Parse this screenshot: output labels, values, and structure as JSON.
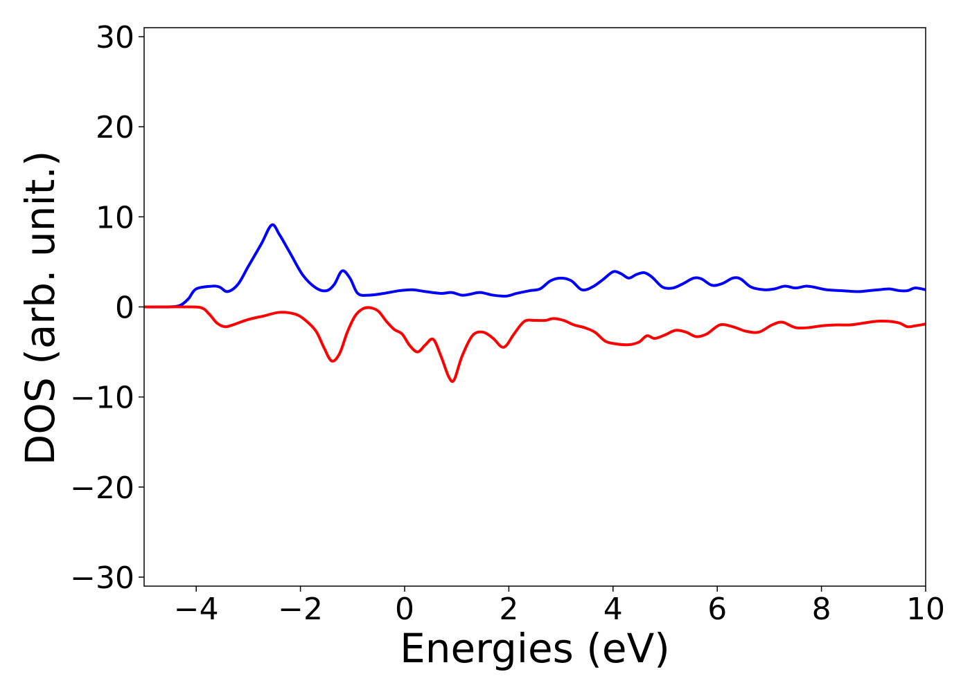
{
  "chart_data": {
    "type": "line",
    "title": "",
    "xlabel": "Energies (eV)",
    "ylabel": "DOS (arb. unit.)",
    "xlim": [
      -5,
      10
    ],
    "ylim": [
      -31,
      31
    ],
    "grid": false,
    "xticks": [
      -4,
      -2,
      0,
      2,
      4,
      6,
      8,
      10
    ],
    "xtick_labels": [
      "−4",
      "−2",
      "0",
      "2",
      "4",
      "6",
      "8",
      "10"
    ],
    "yticks": [
      30,
      20,
      10,
      0,
      -10,
      -20,
      -30
    ],
    "ytick_labels": [
      "30",
      "20",
      "10",
      "0",
      "−10",
      "−20",
      "−30"
    ],
    "series": [
      {
        "color": "#0000ff",
        "x": [
          -5,
          -4.5,
          -4.3,
          -4.15,
          -4.0,
          -3.7,
          -3.55,
          -3.4,
          -3.2,
          -3.0,
          -2.75,
          -2.55,
          -2.4,
          -2.2,
          -1.95,
          -1.7,
          -1.5,
          -1.35,
          -1.2,
          -1.05,
          -0.9,
          -0.7,
          -0.4,
          -0.1,
          0.15,
          0.4,
          0.7,
          0.9,
          1.1,
          1.25,
          1.45,
          1.7,
          1.95,
          2.15,
          2.4,
          2.6,
          2.8,
          3.0,
          3.2,
          3.4,
          3.6,
          3.8,
          4.0,
          4.15,
          4.3,
          4.45,
          4.6,
          4.75,
          4.95,
          5.15,
          5.35,
          5.55,
          5.7,
          5.9,
          6.1,
          6.3,
          6.45,
          6.65,
          6.9,
          7.1,
          7.3,
          7.5,
          7.7,
          7.85,
          8.1,
          8.4,
          8.7,
          8.9,
          9.1,
          9.3,
          9.5,
          9.65,
          9.8,
          10.0
        ],
        "y": [
          0,
          0,
          0.2,
          0.9,
          2.0,
          2.3,
          2.2,
          1.7,
          2.5,
          4.5,
          7.0,
          9.1,
          8.0,
          6.0,
          3.5,
          2.1,
          1.8,
          2.5,
          4.0,
          3.2,
          1.5,
          1.3,
          1.5,
          1.8,
          1.9,
          1.7,
          1.5,
          1.6,
          1.3,
          1.4,
          1.6,
          1.3,
          1.2,
          1.5,
          1.8,
          2.0,
          2.9,
          3.2,
          2.9,
          1.9,
          2.2,
          3.0,
          3.9,
          3.7,
          3.2,
          3.6,
          3.8,
          3.3,
          2.2,
          2.1,
          2.6,
          3.2,
          3.1,
          2.4,
          2.6,
          3.2,
          3.1,
          2.2,
          1.9,
          2.0,
          2.3,
          2.1,
          2.3,
          2.2,
          1.9,
          1.8,
          1.7,
          1.8,
          1.9,
          2.0,
          1.8,
          1.8,
          2.1,
          1.9
        ]
      },
      {
        "color": "#ff0000",
        "x": [
          -5,
          -4.2,
          -3.9,
          -3.75,
          -3.6,
          -3.45,
          -3.3,
          -3.0,
          -2.7,
          -2.4,
          -2.1,
          -1.9,
          -1.7,
          -1.55,
          -1.4,
          -1.25,
          -1.1,
          -0.95,
          -0.8,
          -0.65,
          -0.5,
          -0.35,
          -0.2,
          -0.05,
          0.1,
          0.25,
          0.4,
          0.55,
          0.7,
          0.85,
          0.95,
          1.1,
          1.3,
          1.5,
          1.7,
          1.85,
          1.95,
          2.1,
          2.3,
          2.5,
          2.7,
          2.85,
          3.05,
          3.25,
          3.45,
          3.65,
          3.85,
          4.05,
          4.3,
          4.5,
          4.65,
          4.8,
          5.0,
          5.2,
          5.4,
          5.6,
          5.8,
          6.05,
          6.3,
          6.55,
          6.8,
          7.05,
          7.25,
          7.5,
          7.75,
          8.0,
          8.3,
          8.55,
          8.8,
          9.05,
          9.3,
          9.5,
          9.65,
          9.8,
          10.0
        ],
        "y": [
          0,
          0,
          -0.1,
          -0.8,
          -1.8,
          -2.2,
          -2.0,
          -1.4,
          -1.0,
          -0.6,
          -0.8,
          -1.5,
          -2.7,
          -4.5,
          -6.0,
          -5.2,
          -2.8,
          -1.0,
          -0.2,
          -0.1,
          -0.5,
          -1.6,
          -2.5,
          -3.0,
          -4.3,
          -5.0,
          -4.2,
          -3.6,
          -5.5,
          -7.8,
          -8.1,
          -5.5,
          -3.2,
          -2.8,
          -3.5,
          -4.4,
          -4.3,
          -3.0,
          -1.6,
          -1.5,
          -1.5,
          -1.3,
          -1.5,
          -2.0,
          -2.3,
          -2.8,
          -3.8,
          -4.1,
          -4.2,
          -3.9,
          -3.2,
          -3.5,
          -3.1,
          -2.6,
          -2.8,
          -3.3,
          -3.0,
          -2.0,
          -2.2,
          -2.7,
          -2.8,
          -2.0,
          -1.7,
          -2.3,
          -2.3,
          -2.1,
          -2.0,
          -2.0,
          -1.8,
          -1.6,
          -1.6,
          -1.8,
          -2.2,
          -2.1,
          -1.9
        ]
      }
    ]
  }
}
